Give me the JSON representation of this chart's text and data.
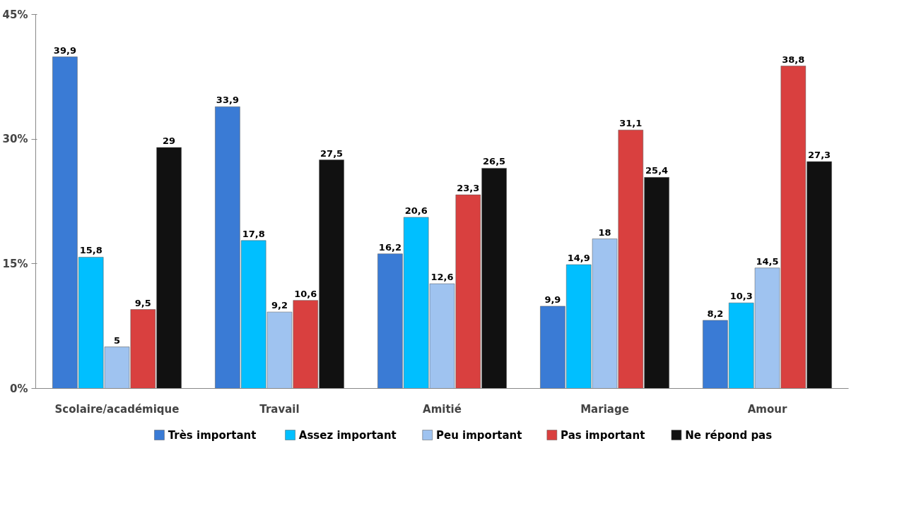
{
  "chart_data": {
    "type": "bar",
    "categories": [
      "Scolaire/académique",
      "Travail",
      "Amitié",
      "Mariage",
      "Amour"
    ],
    "series": [
      {
        "name": "Très important",
        "color": "#3a7bd5",
        "values": [
          39.9,
          33.9,
          16.2,
          9.9,
          8.2
        ],
        "value_labels": [
          "39,9",
          "33,9",
          "16,2",
          "9,9",
          "8,2"
        ]
      },
      {
        "name": "Assez important",
        "color": "#00bfff",
        "values": [
          15.8,
          17.8,
          20.6,
          14.9,
          10.3
        ],
        "value_labels": [
          "15,8",
          "17,8",
          "20,6",
          "14,9",
          "10,3"
        ]
      },
      {
        "name": "Peu important",
        "color": "#9fc3f0",
        "values": [
          5,
          9.2,
          12.6,
          18,
          14.5
        ],
        "value_labels": [
          "5",
          "9,2",
          "12,6",
          "18",
          "14,5"
        ]
      },
      {
        "name": "Pas important",
        "color": "#d9403f",
        "values": [
          9.5,
          10.6,
          23.3,
          31.1,
          38.8
        ],
        "value_labels": [
          "9,5",
          "10,6",
          "23,3",
          "31,1",
          "38,8"
        ]
      },
      {
        "name": "Ne répond pas",
        "color": "#111111",
        "values": [
          29,
          27.5,
          26.5,
          25.4,
          27.3
        ],
        "value_labels": [
          "29",
          "27,5",
          "26,5",
          "25,4",
          "27,3"
        ]
      }
    ],
    "ylim": [
      0,
      45
    ],
    "yticks": [
      {
        "value": 0,
        "label": "0%"
      },
      {
        "value": 15,
        "label": "15%"
      },
      {
        "value": 30,
        "label": "30%"
      },
      {
        "value": 45,
        "label": "45%"
      }
    ],
    "grid": false,
    "legend": "bottom"
  }
}
